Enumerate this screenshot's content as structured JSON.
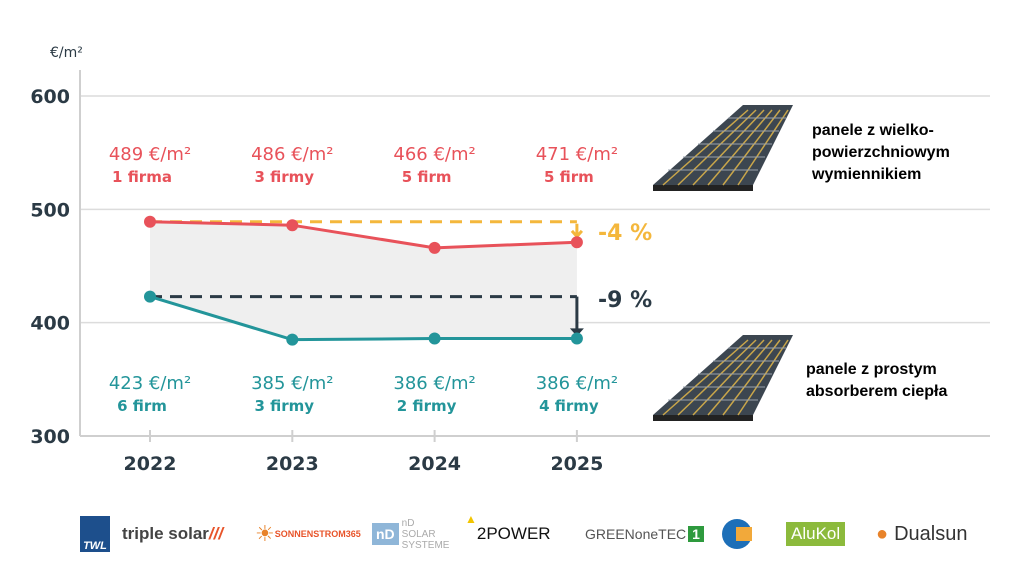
{
  "chart_data": {
    "type": "line",
    "ylabel": "€/m²",
    "x": [
      "2022",
      "2023",
      "2024",
      "2025"
    ],
    "ylim": [
      300,
      600
    ],
    "yticks": [
      300,
      400,
      500,
      600
    ],
    "grid": true,
    "series": [
      {
        "name": "panele z wielko-powierzchniowym wymiennikiem",
        "color": "#e8525a",
        "values": [
          489,
          486,
          466,
          471
        ],
        "labels": [
          "489 €/m²",
          "486 €/m²",
          "466 €/m²",
          "471 €/m²"
        ],
        "sublabels": [
          "1 firma",
          "3 firmy",
          "5 firm",
          "5 firm"
        ]
      },
      {
        "name": "panele z prostym absorberem ciepła",
        "color": "#23959a",
        "values": [
          423,
          385,
          386,
          386
        ],
        "labels": [
          "423 €/m²",
          "385 €/m²",
          "386 €/m²",
          "386 €/m²"
        ],
        "sublabels": [
          "6 firm",
          "3 firmy",
          "2 firmy",
          "4 firmy"
        ]
      }
    ],
    "annotations": [
      {
        "text": "-4 %",
        "color": "#f4b73c",
        "from": 489
      },
      {
        "text": "-9 %",
        "color": "#2b3a45",
        "from": 423
      }
    ],
    "fill_color": "#efefef"
  },
  "legend": {
    "top": [
      "panele z wielko-",
      "powierzchniowym",
      "wymiennikiem"
    ],
    "bottom": [
      "panele z prostym",
      "absorberem ciepła"
    ]
  },
  "logos": [
    "TWL",
    "triple solar",
    "SONNENSTROM365",
    "nD SOLAR SYSTEME",
    "2POWER",
    "GREENoneTEC",
    "CONSOLAR",
    "AluKol",
    "Dualsun"
  ]
}
